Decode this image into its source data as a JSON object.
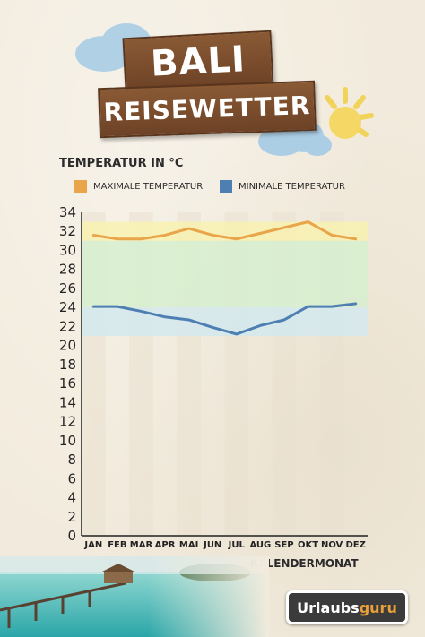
{
  "poster": {
    "title_line1": "BALI",
    "title_line2": "REISEWETTER",
    "logo_part1": "Urlaubs",
    "logo_part2": "guru"
  },
  "colors": {
    "max": "#e9a54a",
    "min": "#4e7fb3",
    "band_yellow": "#f8f1b0",
    "band_green": "#d6efcf",
    "band_blue": "#d3e9ef",
    "axis": "#222222"
  },
  "chart_data": {
    "type": "line",
    "ylabel": "TEMPERATUR IN °C",
    "xlabel": "KALENDERMONAT",
    "categories": [
      "JAN",
      "FEB",
      "MAR",
      "APR",
      "MAI",
      "JUN",
      "JUL",
      "AUG",
      "SEP",
      "OKT",
      "NOV",
      "DEZ"
    ],
    "yticks": [
      0,
      2,
      4,
      6,
      8,
      10,
      12,
      14,
      16,
      18,
      20,
      22,
      24,
      26,
      28,
      30,
      32,
      34
    ],
    "ylim": [
      0,
      34
    ],
    "legend_position": "top",
    "grid": false,
    "background_bands": [
      {
        "from": 31,
        "to": 33,
        "color": "yellow"
      },
      {
        "from": 24,
        "to": 31,
        "color": "green"
      },
      {
        "from": 21,
        "to": 24,
        "color": "blue"
      }
    ],
    "series": [
      {
        "name": "MAXIMALE TEMPERATUR",
        "values": [
          31.6,
          31.2,
          31.2,
          31.6,
          32.3,
          31.6,
          31.2,
          31.8,
          32.4,
          33.0,
          31.6,
          31.2
        ]
      },
      {
        "name": "MINIMALE TEMPERATUR",
        "values": [
          24.1,
          24.1,
          23.6,
          23.0,
          22.7,
          21.9,
          21.2,
          22.1,
          22.7,
          24.1,
          24.1,
          24.4
        ]
      }
    ]
  }
}
